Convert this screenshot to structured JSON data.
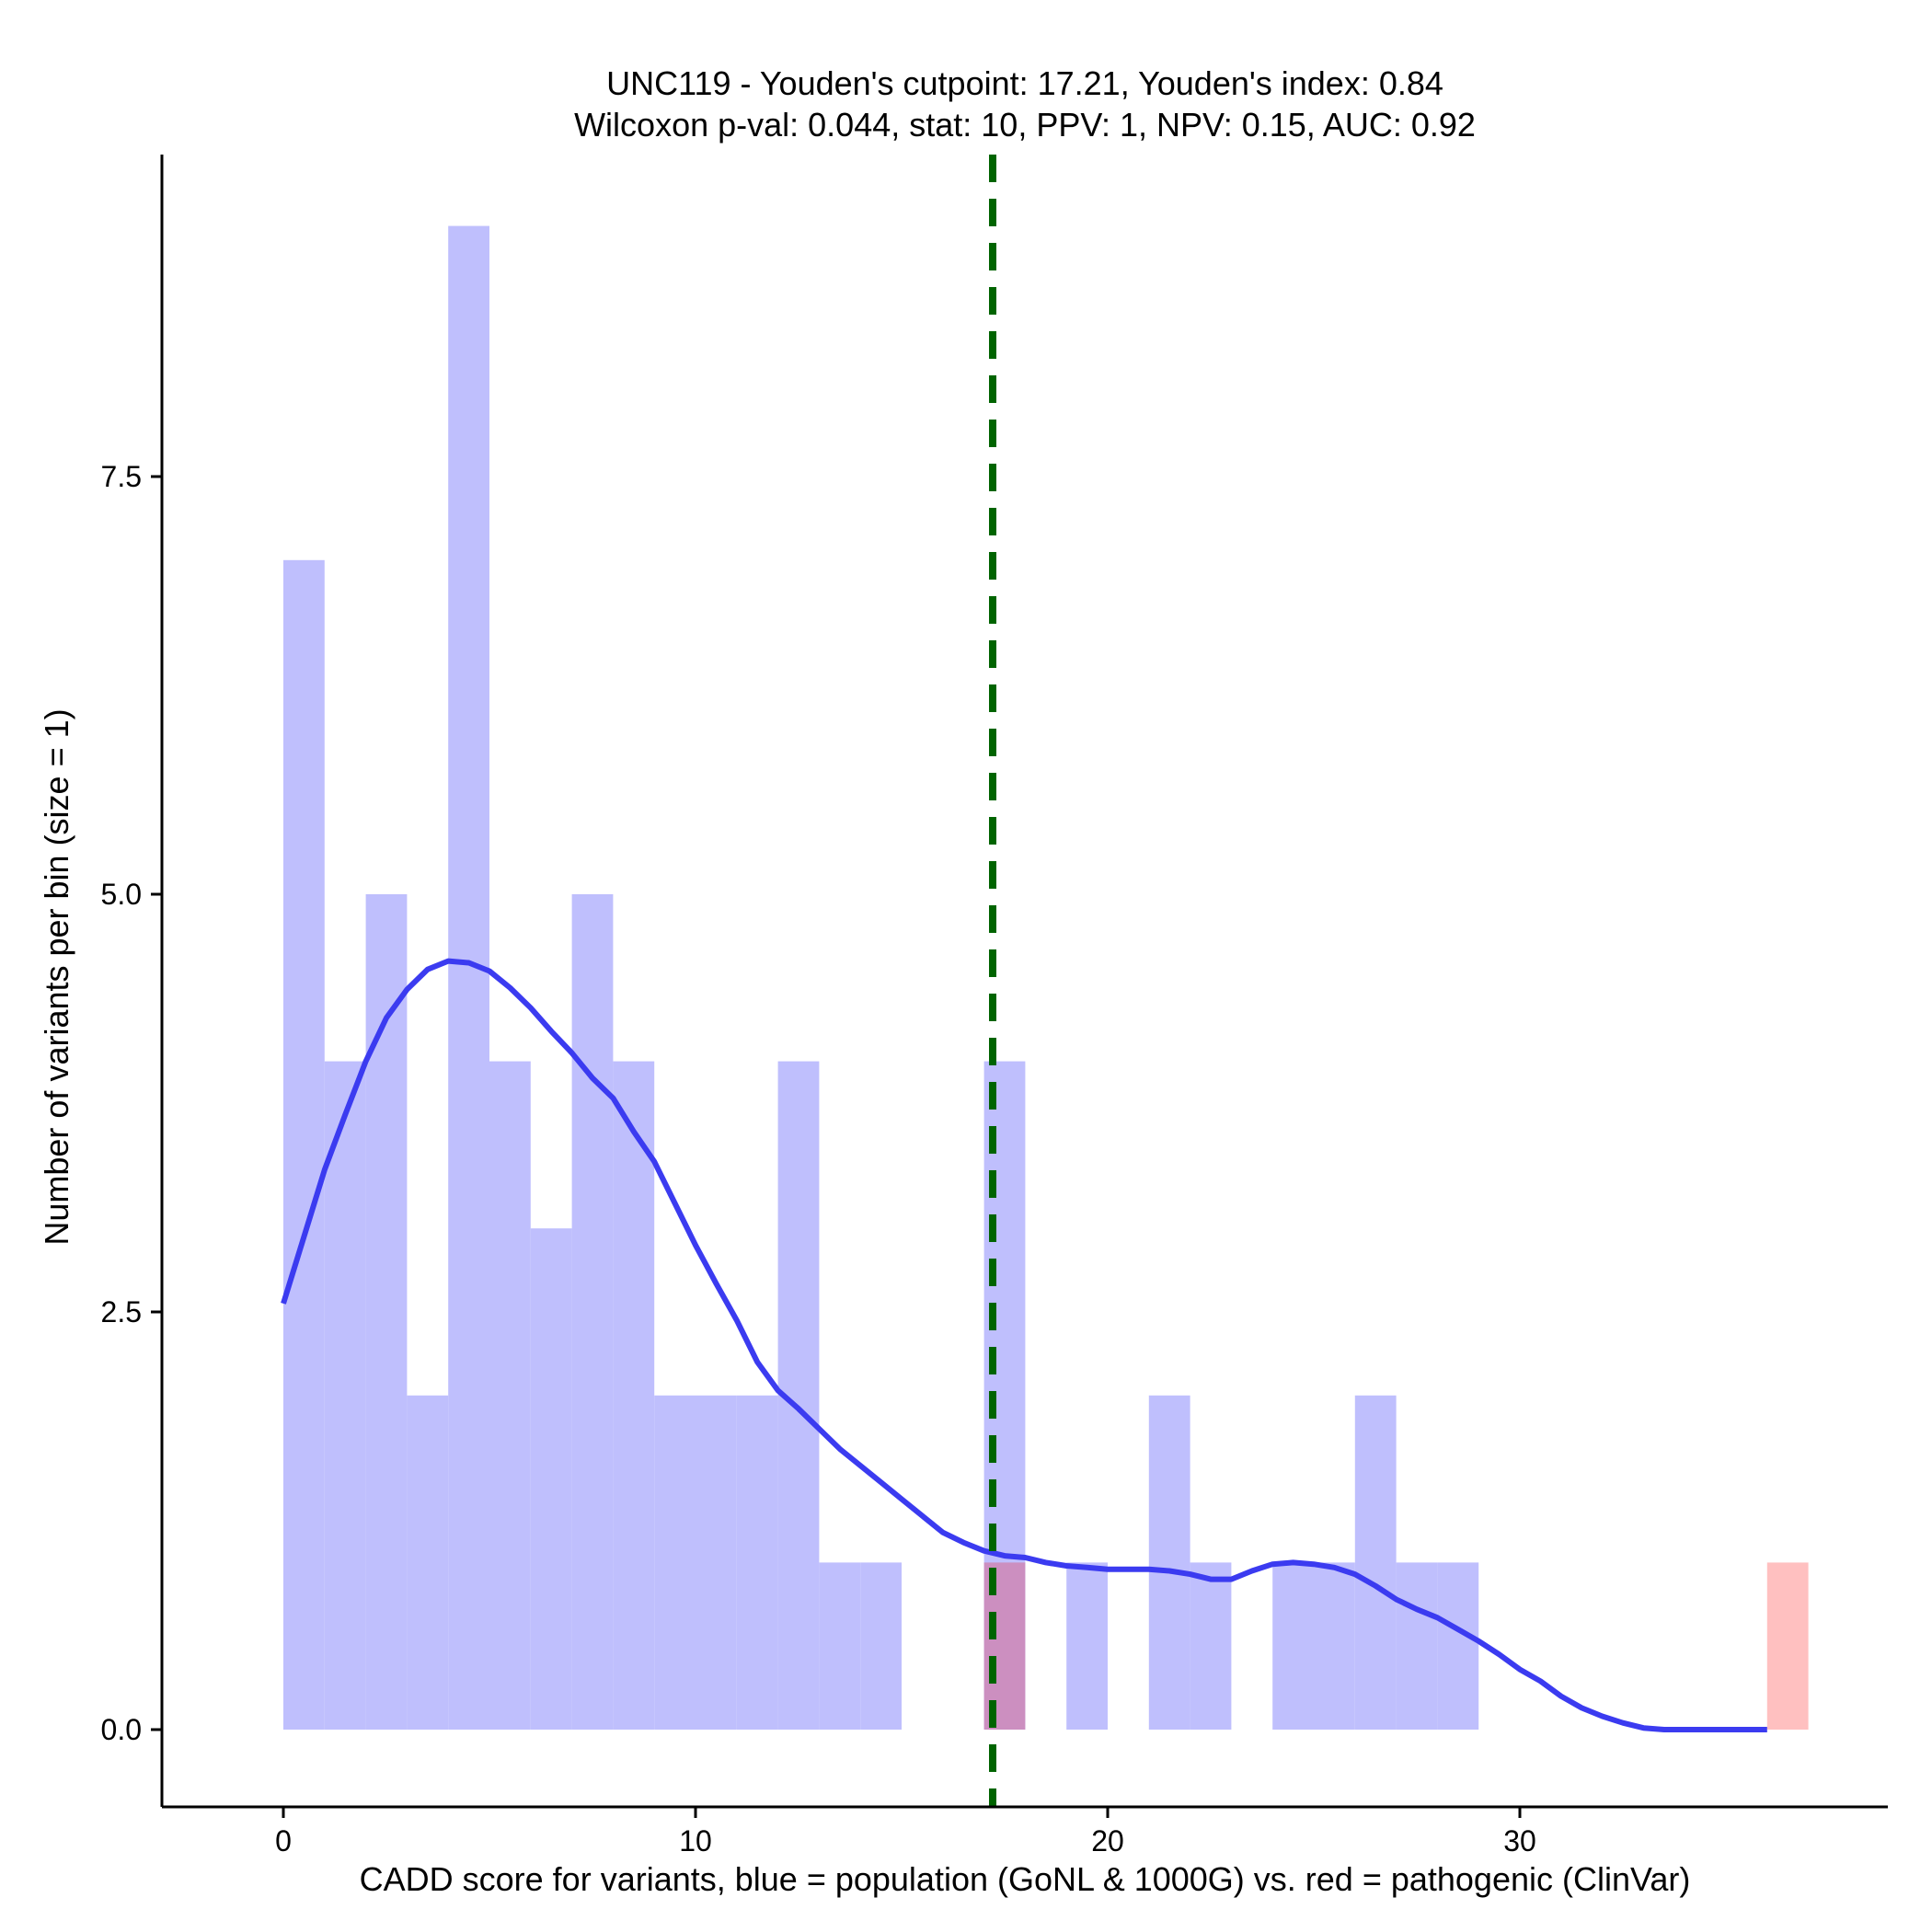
{
  "chart_data": {
    "type": "histogram",
    "title": "UNC119 - Youden's cutpoint: 17.21, Youden's index: 0.84",
    "subtitle": "Wilcoxon p-val: 0.044, stat: 10, PPV: 1, NPV: 0.15, AUC: 0.92",
    "xlabel": "CADD score for variants, blue = population (GoNL & 1000G) vs. red = pathogenic (ClinVar)",
    "ylabel": "Number of variants per bin (size = 1)",
    "xlim": [
      -2.9,
      38.9
    ],
    "ylim": [
      -0.45,
      9.5
    ],
    "x_ticks": [
      0,
      10,
      20,
      30
    ],
    "x_tick_labels": [
      "0",
      "10",
      "20",
      "30"
    ],
    "y_ticks": [
      0,
      2.5,
      5,
      7.5
    ],
    "y_tick_labels": [
      "0.0",
      "2.5",
      "5.0",
      "7.5"
    ],
    "bin_size": 1,
    "cutpoint": 17.21,
    "series": [
      {
        "name": "population (GoNL & 1000G)",
        "color": "#bfbffd",
        "bins": [
          {
            "start": 0,
            "count": 7
          },
          {
            "start": 1,
            "count": 4
          },
          {
            "start": 2,
            "count": 5
          },
          {
            "start": 3,
            "count": 2
          },
          {
            "start": 4,
            "count": 9
          },
          {
            "start": 5,
            "count": 4
          },
          {
            "start": 6,
            "count": 3
          },
          {
            "start": 7,
            "count": 5
          },
          {
            "start": 8,
            "count": 4
          },
          {
            "start": 9,
            "count": 2
          },
          {
            "start": 10,
            "count": 2
          },
          {
            "start": 11,
            "count": 2
          },
          {
            "start": 12,
            "count": 4
          },
          {
            "start": 13,
            "count": 1
          },
          {
            "start": 14,
            "count": 1
          },
          {
            "start": 17,
            "count": 4
          },
          {
            "start": 19,
            "count": 1
          },
          {
            "start": 21,
            "count": 2
          },
          {
            "start": 22,
            "count": 1
          },
          {
            "start": 24,
            "count": 1
          },
          {
            "start": 25,
            "count": 1
          },
          {
            "start": 26,
            "count": 2
          },
          {
            "start": 27,
            "count": 1
          },
          {
            "start": 28,
            "count": 1
          }
        ]
      },
      {
        "name": "pathogenic (ClinVar)",
        "color": "#ffc0c0",
        "overlap_color": "#cc8fc0",
        "bins": [
          {
            "start": 17,
            "count": 1
          },
          {
            "start": 36,
            "count": 1
          }
        ]
      }
    ],
    "density_curve": {
      "name": "population density (scaled)",
      "color": "#3b3bf0",
      "x": [
        0,
        1,
        1.5,
        2,
        2.5,
        3,
        3.5,
        4,
        4.5,
        5,
        5.5,
        6,
        6.5,
        7,
        7.5,
        8,
        8.5,
        9,
        9.5,
        10,
        10.5,
        11,
        11.5,
        12,
        12.5,
        13,
        13.5,
        14,
        14.5,
        15,
        15.5,
        16,
        16.5,
        17,
        17.5,
        18,
        18.5,
        19,
        19.5,
        20,
        20.5,
        21,
        21.5,
        22,
        22.5,
        23,
        23.5,
        24,
        24.5,
        25,
        25.5,
        26,
        26.5,
        27,
        27.5,
        28,
        28.5,
        29,
        29.5,
        30,
        30.5,
        31,
        31.5,
        32,
        32.5,
        33,
        33.5,
        34,
        35,
        36
      ],
      "y": [
        2.55,
        3.35,
        3.68,
        4.0,
        4.26,
        4.43,
        4.55,
        4.6,
        4.59,
        4.54,
        4.44,
        4.32,
        4.18,
        4.05,
        3.9,
        3.78,
        3.58,
        3.4,
        3.15,
        2.9,
        2.67,
        2.45,
        2.2,
        2.03,
        1.92,
        1.8,
        1.68,
        1.58,
        1.48,
        1.38,
        1.28,
        1.18,
        1.12,
        1.07,
        1.04,
        1.03,
        1.0,
        0.98,
        0.97,
        0.96,
        0.96,
        0.96,
        0.95,
        0.93,
        0.9,
        0.9,
        0.95,
        0.99,
        1.0,
        0.99,
        0.97,
        0.93,
        0.86,
        0.78,
        0.72,
        0.67,
        0.6,
        0.53,
        0.45,
        0.36,
        0.29,
        0.2,
        0.13,
        0.08,
        0.04,
        0.01,
        0.0,
        0.0,
        0.0,
        0.0
      ]
    }
  }
}
